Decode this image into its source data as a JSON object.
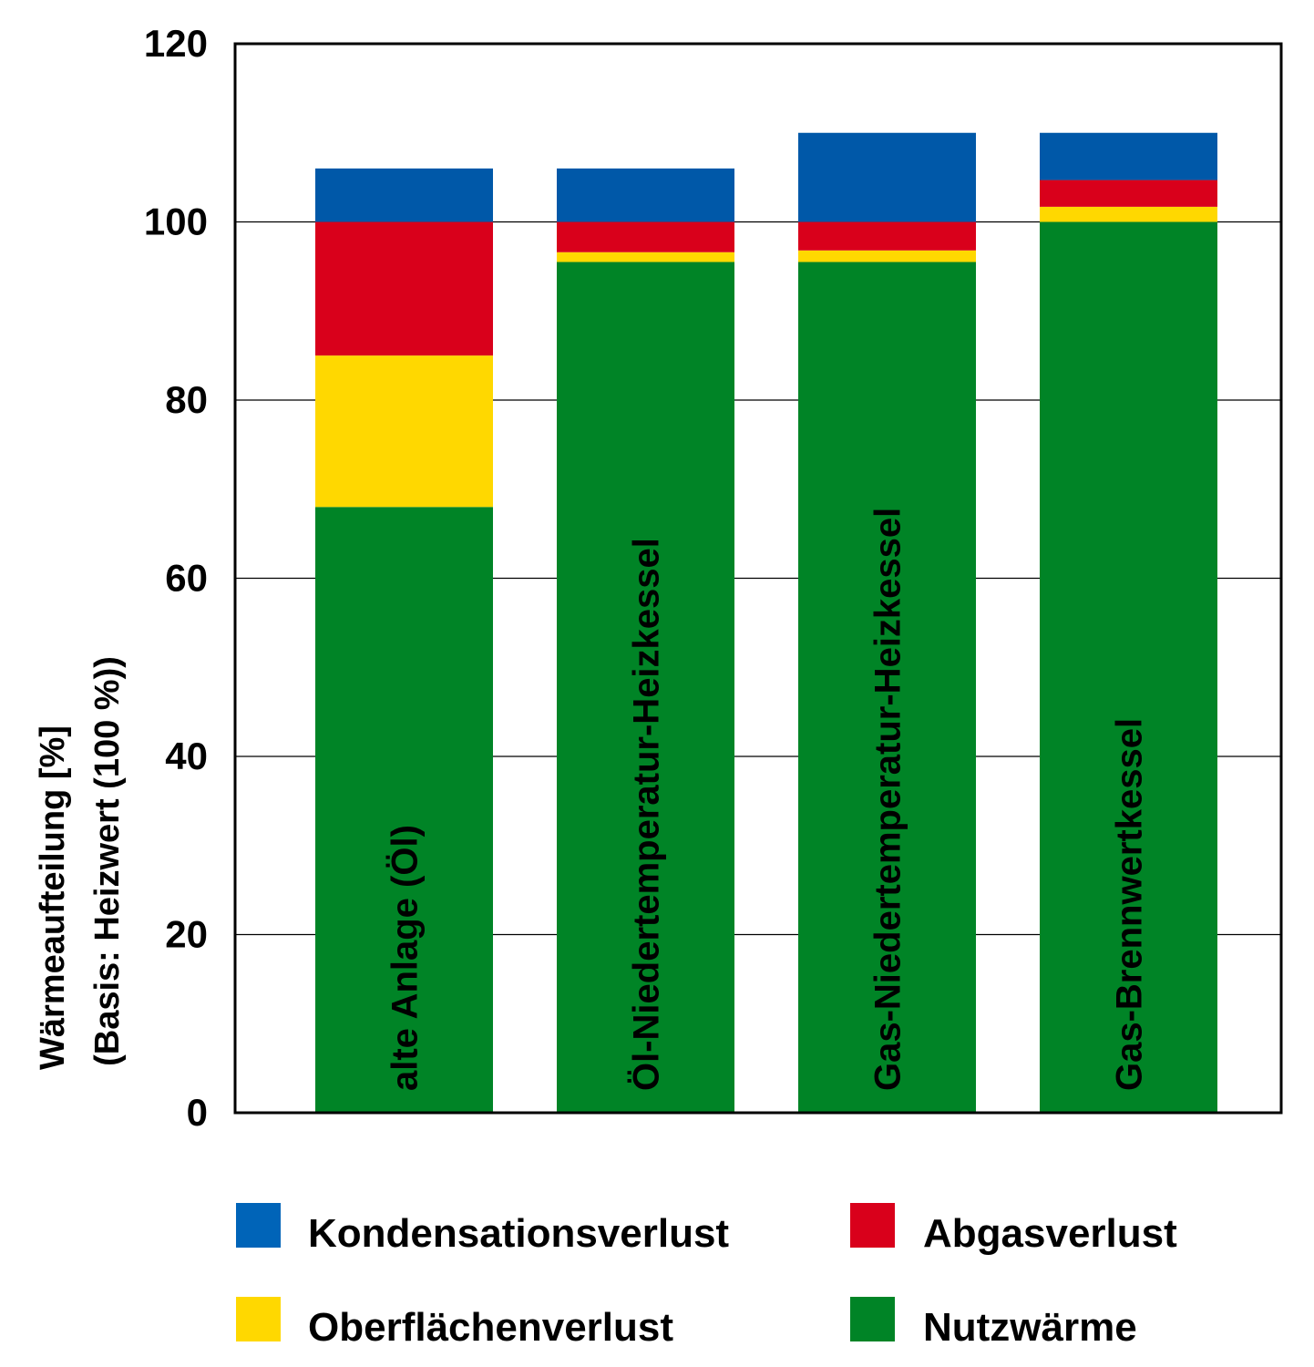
{
  "chart_data": {
    "type": "bar",
    "stacked": true,
    "title": "",
    "xlabel": "",
    "ylabel_line1": "Wärmeaufteilung [%]",
    "ylabel_line2": "(Basis: Heizwert (100 %))",
    "ylim": [
      0,
      120
    ],
    "yticks": [
      "0",
      "20",
      "40",
      "60",
      "80",
      "100",
      "120"
    ],
    "grid": true,
    "legend_position": "bottom",
    "categories": [
      "alte Anlage (Öl)",
      "Öl-Niedertemperatur-Heizkessel",
      "Gas-Niedertemperatur-Heizkessel",
      "Gas-Brennwertkessel"
    ],
    "series": [
      {
        "name": "Nutzwärme",
        "color": "#008426",
        "values": [
          68,
          95.5,
          95.5,
          100
        ]
      },
      {
        "name": "Oberflächenverlust",
        "color": "#ffd800",
        "values": [
          17,
          1.1,
          1.3,
          1.7
        ]
      },
      {
        "name": "Abgasverlust",
        "color": "#d9001b",
        "values": [
          15,
          3.4,
          3.2,
          3.0
        ]
      },
      {
        "name": "Kondensationsverlust",
        "color": "#0058a8",
        "values": [
          6,
          6,
          10,
          5.3
        ]
      }
    ],
    "legend": [
      {
        "name": "Kondensationsverlust",
        "color": "#0064b8"
      },
      {
        "name": "Abgasverlust",
        "color": "#d9001b"
      },
      {
        "name": "Oberflächenverlust",
        "color": "#ffd800"
      },
      {
        "name": "Nutzwärme",
        "color": "#008426"
      }
    ]
  }
}
